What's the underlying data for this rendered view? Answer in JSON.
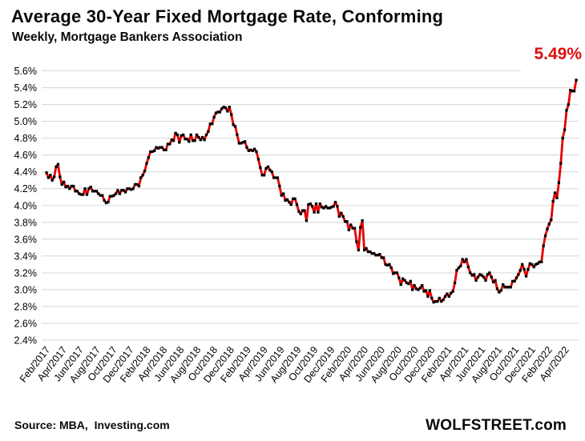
{
  "chart_data": {
    "type": "line",
    "title": "Average 30-Year Fixed Mortgage Rate, Conforming",
    "subtitle": "Weekly, Mortgage Bankers Association",
    "annotation": {
      "text": "5.49%",
      "color": "#dd0f0f"
    },
    "source_note": "Source: MBA,  Investing.com",
    "branding": "WOLFSTREET.com",
    "grid": "horizontal",
    "grid_color": "#d9d9d9",
    "y_axis": {
      "min": 2.4,
      "max": 5.6,
      "step": 0.2,
      "format": "percent"
    },
    "ytick_labels": [
      "2.4%",
      "2.6%",
      "2.8%",
      "3.0%",
      "3.2%",
      "3.4%",
      "3.6%",
      "3.8%",
      "4.0%",
      "4.2%",
      "4.4%",
      "4.6%",
      "4.8%",
      "5.0%",
      "5.2%",
      "5.4%",
      "5.6%"
    ],
    "x_tick_labels": [
      "Feb/2017",
      "Apr/2017",
      "Jun/2017",
      "Aug/2017",
      "Oct/2017",
      "Dec/2017",
      "Feb/2018",
      "Apr/2018",
      "Jun/2018",
      "Aug/2018",
      "Oct/2018",
      "Dec/2018",
      "Feb/2019",
      "Apr/2019",
      "Jun/2019",
      "Aug/2019",
      "Oct/2019",
      "Dec/2019",
      "Feb/2020",
      "Apr/2020",
      "Jun/2020",
      "Aug/2020",
      "Oct/2020",
      "Dec/2020",
      "Feb/2021",
      "Apr/2021",
      "Jun/2021",
      "Aug/2021",
      "Oct/2021",
      "Dec/2021",
      "Feb/2022",
      "Apr/2022"
    ],
    "x_frequency": "weekly",
    "x_start": "Feb/2017",
    "x_end": "May/2022",
    "series": [
      {
        "name": "Average 30-year fixed mortgage rate, conforming",
        "line_color": "#e40000",
        "marker_color": "#000000",
        "values": [
          4.39,
          4.33,
          4.36,
          4.3,
          4.34,
          4.46,
          4.49,
          4.34,
          4.25,
          4.28,
          4.22,
          4.23,
          4.2,
          4.23,
          4.23,
          4.17,
          4.17,
          4.14,
          4.13,
          4.13,
          4.2,
          4.13,
          4.2,
          4.22,
          4.17,
          4.17,
          4.17,
          4.14,
          4.12,
          4.12,
          4.06,
          4.03,
          4.04,
          4.11,
          4.11,
          4.12,
          4.14,
          4.18,
          4.14,
          4.18,
          4.18,
          4.16,
          4.2,
          4.2,
          4.19,
          4.2,
          4.25,
          4.25,
          4.23,
          4.33,
          4.36,
          4.41,
          4.5,
          4.57,
          4.64,
          4.64,
          4.65,
          4.69,
          4.68,
          4.69,
          4.69,
          4.66,
          4.66,
          4.73,
          4.73,
          4.78,
          4.77,
          4.86,
          4.84,
          4.75,
          4.83,
          4.84,
          4.79,
          4.79,
          4.76,
          4.84,
          4.77,
          4.77,
          4.84,
          4.81,
          4.78,
          4.81,
          4.78,
          4.84,
          4.88,
          4.97,
          4.97,
          5.05,
          5.1,
          5.11,
          5.11,
          5.15,
          5.17,
          5.16,
          5.12,
          5.17,
          5.08,
          4.96,
          4.94,
          4.84,
          4.74,
          4.74,
          4.75,
          4.76,
          4.69,
          4.65,
          4.66,
          4.65,
          4.67,
          4.64,
          4.55,
          4.45,
          4.36,
          4.36,
          4.44,
          4.46,
          4.42,
          4.4,
          4.33,
          4.33,
          4.33,
          4.23,
          4.12,
          4.14,
          4.06,
          4.07,
          4.04,
          4.01,
          4.08,
          4.08,
          4.01,
          3.93,
          3.9,
          3.94,
          3.94,
          3.82,
          4.01,
          4.02,
          3.99,
          3.92,
          4.02,
          3.92,
          4.02,
          3.98,
          3.97,
          3.99,
          3.97,
          3.97,
          3.98,
          3.99,
          4.04,
          3.99,
          3.87,
          3.91,
          3.87,
          3.81,
          3.81,
          3.71,
          3.77,
          3.73,
          3.73,
          3.57,
          3.47,
          3.74,
          3.82,
          3.47,
          3.49,
          3.45,
          3.45,
          3.43,
          3.43,
          3.41,
          3.41,
          3.42,
          3.38,
          3.38,
          3.3,
          3.29,
          3.3,
          3.26,
          3.19,
          3.2,
          3.2,
          3.14,
          3.06,
          3.13,
          3.11,
          3.08,
          3.07,
          3.1,
          3.0,
          3.05,
          3.01,
          3.0,
          3.02,
          3.05,
          2.98,
          2.99,
          2.92,
          2.99,
          2.9,
          2.85,
          2.86,
          2.86,
          2.9,
          2.86,
          2.88,
          2.92,
          2.95,
          2.92,
          2.96,
          2.98,
          3.08,
          3.23,
          3.26,
          3.28,
          3.36,
          3.33,
          3.36,
          3.27,
          3.2,
          3.17,
          3.18,
          3.11,
          3.15,
          3.18,
          3.17,
          3.15,
          3.11,
          3.18,
          3.2,
          3.15,
          3.09,
          3.11,
          3.01,
          2.97,
          2.99,
          3.06,
          3.03,
          3.03,
          3.03,
          3.03,
          3.1,
          3.1,
          3.14,
          3.18,
          3.23,
          3.3,
          3.24,
          3.16,
          3.24,
          3.31,
          3.3,
          3.27,
          3.3,
          3.31,
          3.33,
          3.33,
          3.52,
          3.64,
          3.72,
          3.78,
          3.83,
          4.05,
          4.15,
          4.09,
          4.27,
          4.5,
          4.8,
          4.9,
          5.13,
          5.2,
          5.37,
          5.36,
          5.36,
          5.49
        ]
      }
    ]
  }
}
